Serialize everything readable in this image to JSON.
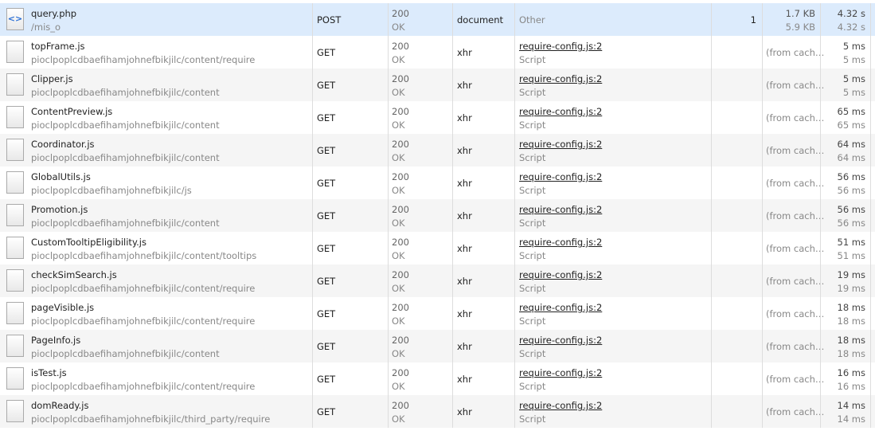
{
  "rows": [
    {
      "name": "query.php",
      "path": "/mis_o",
      "method": "POST",
      "status": "200",
      "status_text": "OK",
      "type": "document",
      "initiator": "Other",
      "initiator_sub": "",
      "extra": "1",
      "size": "1.7 KB",
      "content": "5.9 KB",
      "time": "4.32 s",
      "latency": "4.32 s",
      "icon": "document-icon",
      "selected": true
    },
    {
      "name": "topFrame.js",
      "path": "pioclpoplcdbaefihamjohnefbikjilc/content/require",
      "method": "GET",
      "status": "200",
      "status_text": "OK",
      "type": "xhr",
      "initiator": "require-config.js:2",
      "initiator_sub": "Script",
      "extra": "",
      "size": "(from cach…",
      "content": "",
      "time": "5 ms",
      "latency": "5 ms"
    },
    {
      "name": "Clipper.js",
      "path": "pioclpoplcdbaefihamjohnefbikjilc/content",
      "method": "GET",
      "status": "200",
      "status_text": "OK",
      "type": "xhr",
      "initiator": "require-config.js:2",
      "initiator_sub": "Script",
      "extra": "",
      "size": "(from cach…",
      "content": "",
      "time": "5 ms",
      "latency": "5 ms"
    },
    {
      "name": "ContentPreview.js",
      "path": "pioclpoplcdbaefihamjohnefbikjilc/content",
      "method": "GET",
      "status": "200",
      "status_text": "OK",
      "type": "xhr",
      "initiator": "require-config.js:2",
      "initiator_sub": "Script",
      "extra": "",
      "size": "(from cach…",
      "content": "",
      "time": "65 ms",
      "latency": "65 ms"
    },
    {
      "name": "Coordinator.js",
      "path": "pioclpoplcdbaefihamjohnefbikjilc/content",
      "method": "GET",
      "status": "200",
      "status_text": "OK",
      "type": "xhr",
      "initiator": "require-config.js:2",
      "initiator_sub": "Script",
      "extra": "",
      "size": "(from cach…",
      "content": "",
      "time": "64 ms",
      "latency": "64 ms"
    },
    {
      "name": "GlobalUtils.js",
      "path": "pioclpoplcdbaefihamjohnefbikjilc/js",
      "method": "GET",
      "status": "200",
      "status_text": "OK",
      "type": "xhr",
      "initiator": "require-config.js:2",
      "initiator_sub": "Script",
      "extra": "",
      "size": "(from cach…",
      "content": "",
      "time": "56 ms",
      "latency": "56 ms"
    },
    {
      "name": "Promotion.js",
      "path": "pioclpoplcdbaefihamjohnefbikjilc/content",
      "method": "GET",
      "status": "200",
      "status_text": "OK",
      "type": "xhr",
      "initiator": "require-config.js:2",
      "initiator_sub": "Script",
      "extra": "",
      "size": "(from cach…",
      "content": "",
      "time": "56 ms",
      "latency": "56 ms"
    },
    {
      "name": "CustomTooltipEligibility.js",
      "path": "pioclpoplcdbaefihamjohnefbikjilc/content/tooltips",
      "method": "GET",
      "status": "200",
      "status_text": "OK",
      "type": "xhr",
      "initiator": "require-config.js:2",
      "initiator_sub": "Script",
      "extra": "",
      "size": "(from cach…",
      "content": "",
      "time": "51 ms",
      "latency": "51 ms"
    },
    {
      "name": "checkSimSearch.js",
      "path": "pioclpoplcdbaefihamjohnefbikjilc/content/require",
      "method": "GET",
      "status": "200",
      "status_text": "OK",
      "type": "xhr",
      "initiator": "require-config.js:2",
      "initiator_sub": "Script",
      "extra": "",
      "size": "(from cach…",
      "content": "",
      "time": "19 ms",
      "latency": "19 ms"
    },
    {
      "name": "pageVisible.js",
      "path": "pioclpoplcdbaefihamjohnefbikjilc/content/require",
      "method": "GET",
      "status": "200",
      "status_text": "OK",
      "type": "xhr",
      "initiator": "require-config.js:2",
      "initiator_sub": "Script",
      "extra": "",
      "size": "(from cach…",
      "content": "",
      "time": "18 ms",
      "latency": "18 ms"
    },
    {
      "name": "PageInfo.js",
      "path": "pioclpoplcdbaefihamjohnefbikjilc/content",
      "method": "GET",
      "status": "200",
      "status_text": "OK",
      "type": "xhr",
      "initiator": "require-config.js:2",
      "initiator_sub": "Script",
      "extra": "",
      "size": "(from cach…",
      "content": "",
      "time": "18 ms",
      "latency": "18 ms"
    },
    {
      "name": "isTest.js",
      "path": "pioclpoplcdbaefihamjohnefbikjilc/content/require",
      "method": "GET",
      "status": "200",
      "status_text": "OK",
      "type": "xhr",
      "initiator": "require-config.js:2",
      "initiator_sub": "Script",
      "extra": "",
      "size": "(from cach…",
      "content": "",
      "time": "16 ms",
      "latency": "16 ms"
    },
    {
      "name": "domReady.js",
      "path": "pioclpoplcdbaefihamjohnefbikjilc/third_party/require",
      "method": "GET",
      "status": "200",
      "status_text": "OK",
      "type": "xhr",
      "initiator": "require-config.js:2",
      "initiator_sub": "Script",
      "extra": "",
      "size": "(from cach…",
      "content": "",
      "time": "14 ms",
      "latency": "14 ms"
    }
  ],
  "colors": {
    "selected_row": "#dcebfc",
    "even_row": "#f5f5f5"
  }
}
